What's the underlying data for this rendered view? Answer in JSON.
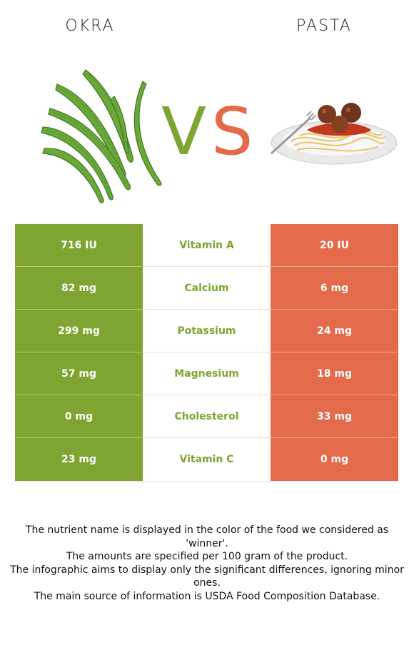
{
  "left_food": "OKRA",
  "right_food": "PASTA",
  "vs": {
    "v": "V",
    "s": "S"
  },
  "colors": {
    "left": "#7ea531",
    "right": "#e36b4b"
  },
  "rows": [
    {
      "left": "716 IU",
      "nutrient": "Vitamin A",
      "right": "20 IU",
      "winner": "left"
    },
    {
      "left": "82 mg",
      "nutrient": "Calcium",
      "right": "6 mg",
      "winner": "left"
    },
    {
      "left": "299 mg",
      "nutrient": "Potassium",
      "right": "24 mg",
      "winner": "left"
    },
    {
      "left": "57 mg",
      "nutrient": "Magnesium",
      "right": "18 mg",
      "winner": "left"
    },
    {
      "left": "0 mg",
      "nutrient": "Cholesterol",
      "right": "33 mg",
      "winner": "left"
    },
    {
      "left": "23 mg",
      "nutrient": "Vitamin C",
      "right": "0 mg",
      "winner": "left"
    }
  ],
  "notes": [
    "The nutrient name is displayed in the color of the food we considered as 'winner'.",
    "The amounts are specified per 100 gram of the product.",
    "The infographic aims to display only the significant differences, ignoring minor ones.",
    "The main source of information is USDA Food Composition Database."
  ]
}
